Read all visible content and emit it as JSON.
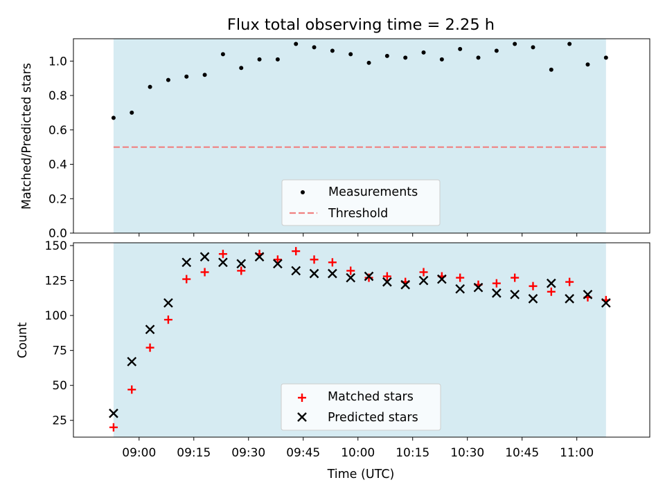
{
  "chart_data": [
    {
      "type": "scatter",
      "title": "Flux total observing time = 2.25 h",
      "xlabel": "",
      "ylabel": "Matched/Predicted stars",
      "xlim": [
        "08:42",
        "11:20"
      ],
      "ylim": [
        0.0,
        1.13
      ],
      "yticks": [
        "0.0",
        "0.2",
        "0.4",
        "0.6",
        "0.8",
        "1.0"
      ],
      "shaded_interval": [
        "08:53",
        "11:08"
      ],
      "shade_color": "#add8e6",
      "threshold": 0.5,
      "threshold_color": "#f08080",
      "legend_position": "lower center",
      "series": [
        {
          "name": "Measurements",
          "marker": "dot",
          "color": "#000000",
          "x": [
            "08:53",
            "08:58",
            "09:03",
            "09:08",
            "09:13",
            "09:18",
            "09:23",
            "09:28",
            "09:33",
            "09:38",
            "09:43",
            "09:48",
            "09:53",
            "09:58",
            "10:03",
            "10:08",
            "10:13",
            "10:18",
            "10:23",
            "10:28",
            "10:33",
            "10:38",
            "10:43",
            "10:48",
            "10:53",
            "10:58",
            "11:03",
            "11:08"
          ],
          "y": [
            0.67,
            0.7,
            0.85,
            0.89,
            0.91,
            0.92,
            1.04,
            0.96,
            1.01,
            1.01,
            1.1,
            1.08,
            1.06,
            1.04,
            0.99,
            1.03,
            1.02,
            1.05,
            1.01,
            1.07,
            1.02,
            1.06,
            1.1,
            1.08,
            0.95,
            1.1,
            0.98,
            1.02
          ]
        },
        {
          "name": "Threshold",
          "marker": "dashed-line",
          "color": "#f08080",
          "x": [
            "08:53",
            "11:08"
          ],
          "y": [
            0.5,
            0.5
          ]
        }
      ]
    },
    {
      "type": "scatter",
      "title": "",
      "xlabel": "Time (UTC)",
      "ylabel": "Count",
      "xlim": [
        "08:42",
        "11:20"
      ],
      "ylim": [
        13,
        152
      ],
      "yticks": [
        "25",
        "50",
        "75",
        "100",
        "125",
        "150"
      ],
      "xticks": [
        "09:00",
        "09:15",
        "09:30",
        "09:45",
        "10:00",
        "10:15",
        "10:30",
        "10:45",
        "11:00"
      ],
      "shaded_interval": [
        "08:53",
        "11:08"
      ],
      "shade_color": "#add8e6",
      "legend_position": "lower center",
      "series": [
        {
          "name": "Matched stars",
          "marker": "plus",
          "color": "#ff0000",
          "x": [
            "08:53",
            "08:58",
            "09:03",
            "09:08",
            "09:13",
            "09:18",
            "09:23",
            "09:28",
            "09:33",
            "09:38",
            "09:43",
            "09:48",
            "09:53",
            "09:58",
            "10:03",
            "10:08",
            "10:13",
            "10:18",
            "10:23",
            "10:28",
            "10:33",
            "10:38",
            "10:43",
            "10:48",
            "10:53",
            "10:58",
            "11:03",
            "11:08"
          ],
          "y": [
            20,
            47,
            77,
            97,
            126,
            131,
            144,
            132,
            144,
            140,
            146,
            140,
            138,
            132,
            127,
            128,
            124,
            131,
            128,
            127,
            122,
            123,
            127,
            121,
            117,
            124,
            113,
            111
          ]
        },
        {
          "name": "Predicted stars",
          "marker": "x",
          "color": "#000000",
          "x": [
            "08:53",
            "08:58",
            "09:03",
            "09:08",
            "09:13",
            "09:18",
            "09:23",
            "09:28",
            "09:33",
            "09:38",
            "09:43",
            "09:48",
            "09:53",
            "09:58",
            "10:03",
            "10:08",
            "10:13",
            "10:18",
            "10:23",
            "10:28",
            "10:33",
            "10:38",
            "10:43",
            "10:48",
            "10:53",
            "10:58",
            "11:03",
            "11:08"
          ],
          "y": [
            30,
            67,
            90,
            109,
            138,
            142,
            138,
            137,
            142,
            137,
            132,
            130,
            130,
            127,
            128,
            124,
            122,
            125,
            126,
            119,
            120,
            116,
            115,
            112,
            123,
            112,
            115,
            109
          ]
        }
      ]
    }
  ]
}
